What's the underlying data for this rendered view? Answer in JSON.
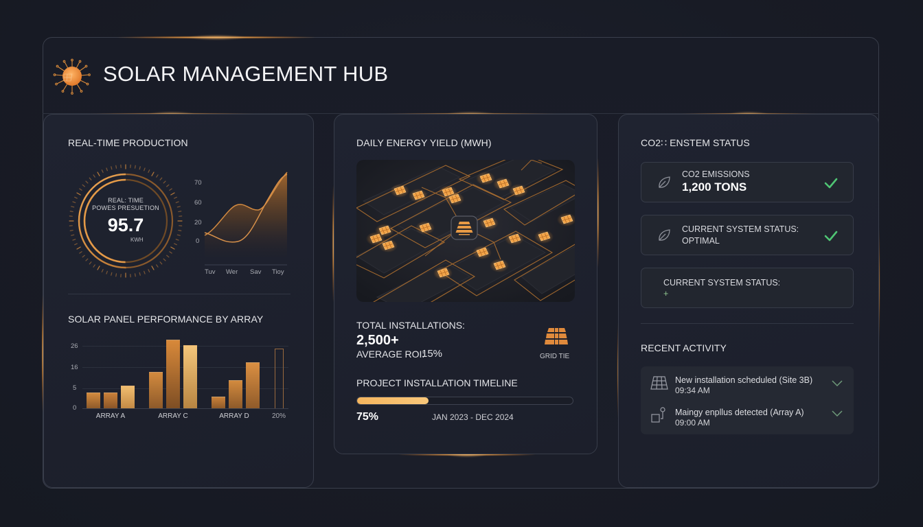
{
  "header": {
    "title": "SOLAR MANAGEMENT HUB",
    "logo_icon": "sun-circuit-icon"
  },
  "realtime": {
    "title": "REAL-TIME PRODUCTION",
    "gauge": {
      "label_line1": "REAL: TIME",
      "label_line2": "POWES PRESUETION",
      "value": "95.7",
      "unit": "KWH",
      "progress_percent": 50
    },
    "line_chart": {
      "y_ticks": [
        "70",
        "60",
        "20",
        "0"
      ],
      "x_ticks": [
        "Tuv",
        "Wer",
        "Sav",
        "Tioy"
      ]
    }
  },
  "array_perf": {
    "title": "SOLAR PANEL PERFORMANCE BY ARRAY",
    "y_ticks": [
      "26",
      "16",
      "5",
      "0"
    ],
    "groups": [
      "ARRAY A",
      "ARRAY C",
      "ARRAY D"
    ],
    "extra_label": "20%"
  },
  "chart_data": [
    {
      "type": "line",
      "title": "Real-Time Production",
      "x": [
        "Tuv",
        "Wer",
        "Sav",
        "Tioy"
      ],
      "y_ticks": [
        0,
        20,
        60,
        70
      ],
      "series": [
        {
          "name": "series-1",
          "values": [
            5,
            58,
            52,
            78
          ]
        },
        {
          "name": "series-2",
          "values": [
            5,
            -2,
            30,
            75
          ]
        }
      ]
    },
    {
      "type": "bar",
      "title": "SOLAR PANEL PERFORMANCE BY ARRAY",
      "categories": [
        "ARRAY A",
        "ARRAY C",
        "ARRAY D",
        "20%"
      ],
      "y_ticks": [
        0,
        5,
        16,
        26
      ],
      "series": [
        {
          "name": "bar-1",
          "values": [
            4.5,
            11,
            3
          ]
        },
        {
          "name": "bar-2",
          "values": [
            4.4,
            29,
            9
          ]
        },
        {
          "name": "bar-3",
          "values": [
            7,
            26,
            16
          ]
        },
        {
          "name": "outline",
          "values": [
            null,
            null,
            null,
            25
          ]
        }
      ]
    },
    {
      "type": "bar",
      "title": "Project Installation Timeline",
      "categories": [
        "progress"
      ],
      "values": [
        75
      ],
      "ylim": [
        0,
        100
      ]
    }
  ],
  "energy_yield": {
    "title": "DAILY ENERGY YIELD (MWH)",
    "map_center_icon": "solar-panel-icon",
    "total_installations_label": "TOTAL INSTALLATIONS:",
    "total_installations_value": "2,500+",
    "avg_roi_label": "AVERAGE ROI:",
    "avg_roi_value": "15%",
    "grid_tie_label": "GRID TIE",
    "timeline_title": "PROJECT INSTALLATION TIMELINE",
    "timeline_percent": "75%",
    "timeline_fill_width": 33,
    "timeline_range": "JAN 2023 - DEC 2024"
  },
  "status": {
    "title": "CO2 / SYSTEM STATUS",
    "title_display": "CO2∷ ENSTEM STATUS",
    "boxes": [
      {
        "label": "CO2 EMISSIONS",
        "value": "1,200 TONS",
        "icon": "leaf-icon",
        "check": true
      },
      {
        "label": "CURRENT SYSTEM STATUS:",
        "value": "OPTIMAL",
        "icon": "leaf-icon",
        "check": true
      },
      {
        "label": "CURRENT SYSTEM STATUS:",
        "value": "+",
        "icon": null,
        "check": false
      }
    ]
  },
  "activity": {
    "title": "RECENT ACTIVITY",
    "items": [
      {
        "text": "New installation scheduled (Site 3B)",
        "time": "09:34 AM",
        "icon": "solar-panel-outline-icon"
      },
      {
        "text": "Maingy  enpllus detected  (Array A)",
        "time": "09:00 AM",
        "icon": "device-sensor-icon"
      }
    ]
  },
  "colors": {
    "accent": "#e6913a",
    "accent_light": "#f8c77a",
    "success": "#4fc574",
    "background": "#181b25",
    "card": "#1f2330"
  }
}
